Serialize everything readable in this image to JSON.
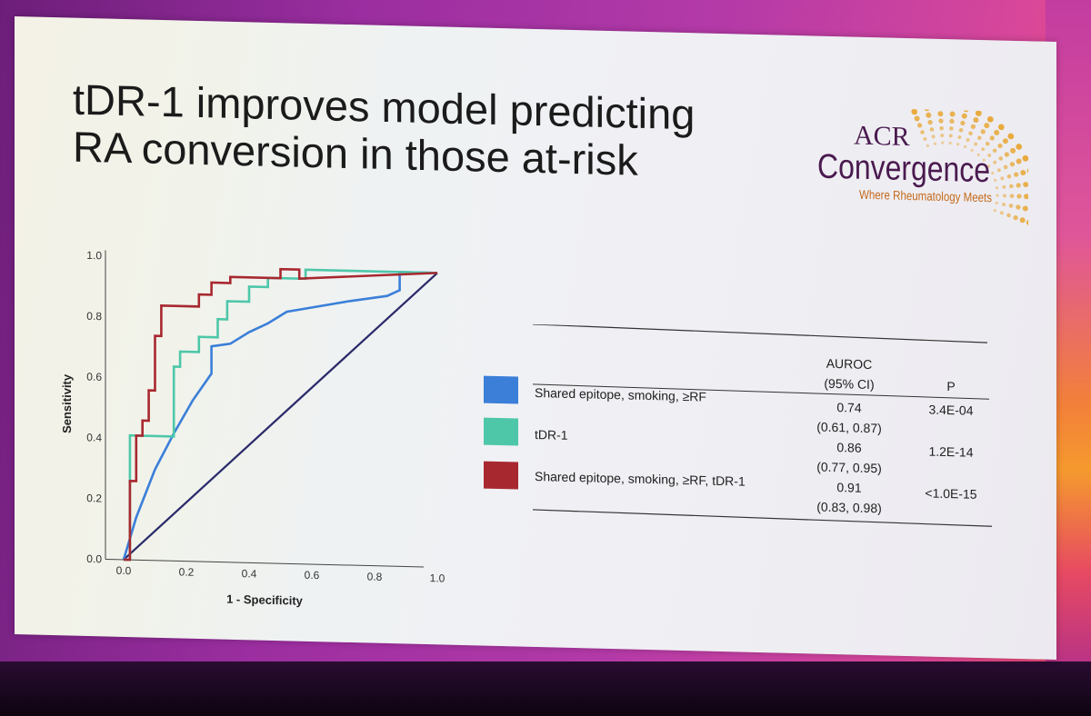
{
  "slide": {
    "title_lines": [
      "tDR-1 improves model predicting",
      "RA conversion in those at-risk"
    ]
  },
  "logo": {
    "line1": "ACR",
    "line2": "Convergence",
    "tagline": "Where Rheumatology Meets",
    "color_primary": "#4a1a4f",
    "color_accent": "#e8a32a"
  },
  "chart_data": {
    "type": "line",
    "title": "",
    "xlabel": "1 - Specificity",
    "ylabel": "Sensitivity",
    "xlim": [
      0,
      1
    ],
    "ylim": [
      0,
      1
    ],
    "x_ticks": [
      "0.0",
      "0.2",
      "0.4",
      "0.6",
      "0.8",
      "1.0"
    ],
    "y_ticks": [
      "0.0",
      "0.2",
      "0.4",
      "0.6",
      "0.8",
      "1.0"
    ],
    "grid": false,
    "diagonal_color": "#2a2a6a",
    "series": [
      {
        "name": "Shared epitope, smoking, ≥RF",
        "color": "#3b7fd9",
        "x": [
          0,
          0.04,
          0.1,
          0.16,
          0.22,
          0.28,
          0.28,
          0.34,
          0.4,
          0.46,
          0.52,
          0.62,
          0.72,
          0.84,
          0.88,
          0.88,
          1.0
        ],
        "y": [
          0,
          0.14,
          0.3,
          0.42,
          0.53,
          0.62,
          0.71,
          0.72,
          0.76,
          0.79,
          0.83,
          0.85,
          0.87,
          0.89,
          0.91,
          0.97,
          0.97
        ]
      },
      {
        "name": "tDR-1",
        "color": "#4ec7a9",
        "x": [
          0,
          0.02,
          0.02,
          0.16,
          0.16,
          0.18,
          0.18,
          0.24,
          0.24,
          0.3,
          0.3,
          0.33,
          0.33,
          0.4,
          0.4,
          0.46,
          0.46,
          0.58,
          0.58,
          1.0
        ],
        "y": [
          0,
          0,
          0.41,
          0.41,
          0.64,
          0.64,
          0.69,
          0.69,
          0.74,
          0.74,
          0.8,
          0.8,
          0.86,
          0.86,
          0.91,
          0.91,
          0.94,
          0.94,
          0.97,
          0.97
        ]
      },
      {
        "name": "Shared epitope, smoking, ≥RF, tDR-1",
        "color": "#a82830",
        "x": [
          0,
          0.02,
          0.02,
          0.04,
          0.04,
          0.06,
          0.06,
          0.08,
          0.08,
          0.1,
          0.1,
          0.12,
          0.12,
          0.24,
          0.24,
          0.28,
          0.28,
          0.34,
          0.34,
          0.5,
          0.5,
          0.56,
          0.56,
          1.0
        ],
        "y": [
          0,
          0,
          0.26,
          0.26,
          0.41,
          0.41,
          0.46,
          0.46,
          0.56,
          0.56,
          0.74,
          0.74,
          0.84,
          0.84,
          0.88,
          0.88,
          0.92,
          0.92,
          0.94,
          0.94,
          0.97,
          0.97,
          0.94,
          0.97
        ]
      }
    ]
  },
  "table": {
    "header": {
      "auroc_line1": "AUROC",
      "auroc_line2": "(95% CI)",
      "p": "P"
    },
    "rows": [
      {
        "label": "Shared epitope, smoking, ≥RF",
        "color": "#3b7fd9",
        "auroc": "0.74",
        "ci": "(0.61, 0.87)",
        "p": "3.4E-04"
      },
      {
        "label": "tDR-1",
        "color": "#4ec7a9",
        "auroc": "0.86",
        "ci": "(0.77, 0.95)",
        "p": "1.2E-14"
      },
      {
        "label": "Shared epitope, smoking, ≥RF, tDR-1",
        "color": "#a82830",
        "auroc": "0.91",
        "ci": "(0.83, 0.98)",
        "p": "<1.0E-15"
      }
    ]
  }
}
